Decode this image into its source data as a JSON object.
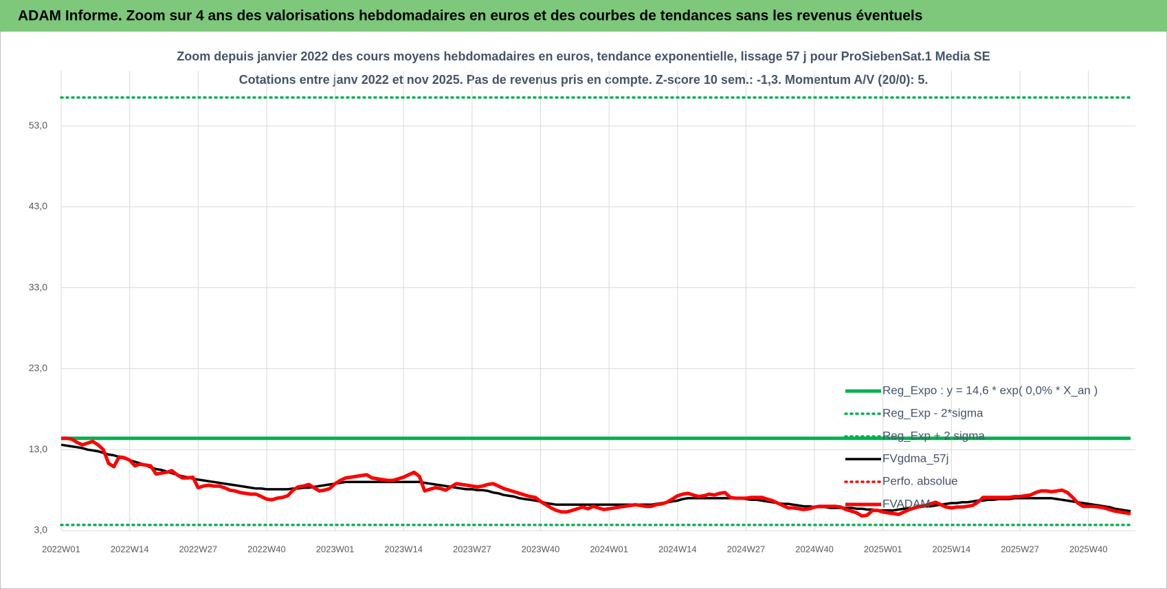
{
  "header": {
    "title": "ADAM Informe. Zoom sur 4 ans des valorisations hebdomadaires en euros et des courbes de tendances sans les revenus éventuels"
  },
  "chart_data": {
    "type": "line",
    "title": "Zoom depuis janvier 2022 des cours moyens hebdomadaires en euros, tendance exponentielle, lissage 57 j pour ProSiebenSat.1 Media SE",
    "subtitle": "Cotations entre janv 2022 et nov 2025. Pas de revenus pris en compte. Z-score 10 sem.: -1,3. Momentum A/V (20/0): 5.",
    "categories": [
      "2022W01",
      null,
      null,
      null,
      null,
      null,
      null,
      null,
      null,
      null,
      null,
      null,
      null,
      "2022W14",
      null,
      null,
      null,
      null,
      null,
      null,
      null,
      null,
      null,
      null,
      null,
      null,
      "2022W27",
      null,
      null,
      null,
      null,
      null,
      null,
      null,
      null,
      null,
      null,
      null,
      null,
      "2022W40",
      null,
      null,
      null,
      null,
      null,
      null,
      null,
      null,
      null,
      null,
      null,
      null,
      "2023W01",
      null,
      null,
      null,
      null,
      null,
      null,
      null,
      null,
      null,
      null,
      null,
      null,
      "2023W14",
      null,
      null,
      null,
      null,
      null,
      null,
      null,
      null,
      null,
      null,
      null,
      null,
      "2023W27",
      null,
      null,
      null,
      null,
      null,
      null,
      null,
      null,
      null,
      null,
      null,
      null,
      "2023W40",
      null,
      null,
      null,
      null,
      null,
      null,
      null,
      null,
      null,
      null,
      null,
      null,
      "2024W01",
      null,
      null,
      null,
      null,
      null,
      null,
      null,
      null,
      null,
      null,
      null,
      null,
      "2024W14",
      null,
      null,
      null,
      null,
      null,
      null,
      null,
      null,
      null,
      null,
      null,
      null,
      "2024W27",
      null,
      null,
      null,
      null,
      null,
      null,
      null,
      null,
      null,
      null,
      null,
      null,
      "2024W40",
      null,
      null,
      null,
      null,
      null,
      null,
      null,
      null,
      null,
      null,
      null,
      null,
      "2025W01",
      null,
      null,
      null,
      null,
      null,
      null,
      null,
      null,
      null,
      null,
      null,
      null,
      "2025W14",
      null,
      null,
      null,
      null,
      null,
      null,
      null,
      null,
      null,
      null,
      null,
      null,
      "2025W27",
      null,
      null,
      null,
      null,
      null,
      null,
      null,
      null,
      null,
      null,
      null,
      null,
      "2025W40",
      null,
      null,
      null,
      null,
      null,
      null,
      null,
      null
    ],
    "series": [
      {
        "name": "Reg_Expo : y = 14,6 * exp( 0,0% *  X_an )",
        "color": "#00b050",
        "style": "solid",
        "level": 14.4
      },
      {
        "name": "Reg_Exp - 2*sigma",
        "color": "#00b050",
        "style": "dotted",
        "level": 3.7
      },
      {
        "name": "Reg_Exp + 2 sigma",
        "color": "#00b050",
        "style": "dotted",
        "level": 56.5
      },
      {
        "name": "FVgdma_57j",
        "color": "#000000",
        "style": "solid",
        "values": [
          13.6,
          13.5,
          13.4,
          13.3,
          13.2,
          13.0,
          12.9,
          12.8,
          12.6,
          12.4,
          12.3,
          12.1,
          11.9,
          11.7,
          11.5,
          11.3,
          11.1,
          10.8,
          10.6,
          10.5,
          10.3,
          10.1,
          9.9,
          9.7,
          9.6,
          9.4,
          9.3,
          9.2,
          9.1,
          9.0,
          8.9,
          8.8,
          8.7,
          8.6,
          8.5,
          8.4,
          8.3,
          8.2,
          8.2,
          8.1,
          8.1,
          8.1,
          8.1,
          8.1,
          8.2,
          8.2,
          8.3,
          8.3,
          8.4,
          8.5,
          8.6,
          8.7,
          8.8,
          8.9,
          9.0,
          9.0,
          9.0,
          9.0,
          9.0,
          9.0,
          9.0,
          9.0,
          9.0,
          9.0,
          9.0,
          9.0,
          9.0,
          9.0,
          9.0,
          8.9,
          8.8,
          8.7,
          8.6,
          8.5,
          8.4,
          8.3,
          8.2,
          8.1,
          8.1,
          8.0,
          8.0,
          7.9,
          7.7,
          7.6,
          7.4,
          7.3,
          7.2,
          7.0,
          6.9,
          6.8,
          6.7,
          6.6,
          6.4,
          6.3,
          6.2,
          6.2,
          6.2,
          6.2,
          6.2,
          6.2,
          6.2,
          6.2,
          6.2,
          6.2,
          6.2,
          6.2,
          6.2,
          6.2,
          6.2,
          6.2,
          6.2,
          6.2,
          6.2,
          6.3,
          6.4,
          6.5,
          6.6,
          6.7,
          6.9,
          7.0,
          7.0,
          7.0,
          7.0,
          7.0,
          7.0,
          7.0,
          7.0,
          7.0,
          7.0,
          7.0,
          6.9,
          6.8,
          6.8,
          6.7,
          6.6,
          6.5,
          6.4,
          6.3,
          6.3,
          6.2,
          6.1,
          6.0,
          6.0,
          5.9,
          5.9,
          5.9,
          5.8,
          5.8,
          5.8,
          5.8,
          5.8,
          5.7,
          5.7,
          5.6,
          5.6,
          5.5,
          5.5,
          5.5,
          5.5,
          5.6,
          5.7,
          5.7,
          5.8,
          5.9,
          6.0,
          6.0,
          6.1,
          6.2,
          6.3,
          6.4,
          6.4,
          6.5,
          6.5,
          6.6,
          6.7,
          6.7,
          6.8,
          6.8,
          6.9,
          6.9,
          6.9,
          7.0,
          7.0,
          7.0,
          7.0,
          7.0,
          7.0,
          7.0,
          7.0,
          6.9,
          6.8,
          6.7,
          6.6,
          6.5,
          6.4,
          6.3,
          6.2,
          6.1,
          6.0,
          5.9,
          5.7,
          5.6,
          5.5,
          5.4
        ]
      },
      {
        "name": "Perfo. absolue",
        "color": "#ff0000",
        "style": "dotted"
      },
      {
        "name": "FVADAM",
        "color": "#ff0000",
        "style": "solid",
        "values": [
          14.4,
          14.4,
          14.3,
          13.9,
          13.6,
          13.8,
          14.0,
          13.6,
          13.0,
          11.3,
          10.9,
          12.1,
          12.0,
          11.7,
          11.0,
          11.2,
          11.1,
          11.0,
          10.0,
          10.1,
          10.2,
          10.4,
          9.9,
          9.5,
          9.5,
          9.6,
          8.3,
          8.5,
          8.6,
          8.5,
          8.5,
          8.3,
          8.0,
          7.9,
          7.7,
          7.6,
          7.5,
          7.5,
          7.2,
          6.9,
          6.8,
          7.0,
          7.1,
          7.3,
          8.0,
          8.4,
          8.5,
          8.7,
          8.3,
          7.9,
          8.0,
          8.2,
          8.8,
          9.2,
          9.5,
          9.6,
          9.7,
          9.8,
          9.9,
          9.5,
          9.4,
          9.3,
          9.2,
          9.2,
          9.4,
          9.6,
          9.9,
          10.2,
          9.7,
          7.9,
          8.1,
          8.3,
          8.2,
          8.0,
          8.4,
          8.8,
          8.7,
          8.6,
          8.5,
          8.4,
          8.5,
          8.7,
          8.8,
          8.5,
          8.2,
          8.0,
          7.8,
          7.6,
          7.4,
          7.2,
          7.1,
          6.6,
          6.2,
          5.8,
          5.5,
          5.3,
          5.3,
          5.5,
          5.7,
          5.9,
          5.7,
          6.0,
          5.8,
          5.6,
          5.7,
          5.8,
          5.9,
          6.0,
          6.1,
          6.2,
          6.1,
          6.0,
          6.0,
          6.2,
          6.3,
          6.5,
          6.9,
          7.3,
          7.5,
          7.6,
          7.4,
          7.2,
          7.3,
          7.5,
          7.4,
          7.6,
          7.7,
          7.1,
          7.0,
          7.0,
          7.0,
          7.1,
          7.1,
          7.1,
          6.9,
          6.7,
          6.4,
          6.1,
          5.8,
          5.8,
          5.7,
          5.6,
          5.7,
          5.9,
          6.0,
          6.0,
          6.0,
          6.0,
          5.9,
          5.6,
          5.4,
          5.2,
          4.8,
          4.9,
          5.5,
          5.5,
          5.3,
          5.2,
          5.1,
          5.0,
          5.3,
          5.6,
          5.8,
          6.0,
          6.1,
          6.3,
          6.5,
          6.2,
          5.9,
          5.8,
          5.9,
          5.9,
          6.0,
          6.1,
          6.5,
          7.1,
          7.1,
          7.1,
          7.1,
          7.1,
          7.1,
          7.2,
          7.2,
          7.3,
          7.4,
          7.7,
          7.9,
          7.9,
          7.8,
          7.9,
          8.0,
          7.7,
          7.1,
          6.4,
          6.0,
          6.0,
          6.0,
          5.9,
          5.8,
          5.6,
          5.4,
          5.3,
          5.2,
          5.1
        ]
      }
    ],
    "ylim": [
      3,
      59.8
    ],
    "yticks": [
      {
        "value": 3,
        "label": "3,0"
      },
      {
        "value": 13,
        "label": "13,0"
      },
      {
        "value": 23,
        "label": "23,0"
      },
      {
        "value": 33,
        "label": "33,0"
      },
      {
        "value": 43,
        "label": "43,0"
      },
      {
        "value": 53,
        "label": "53,0"
      }
    ],
    "grid": true
  }
}
